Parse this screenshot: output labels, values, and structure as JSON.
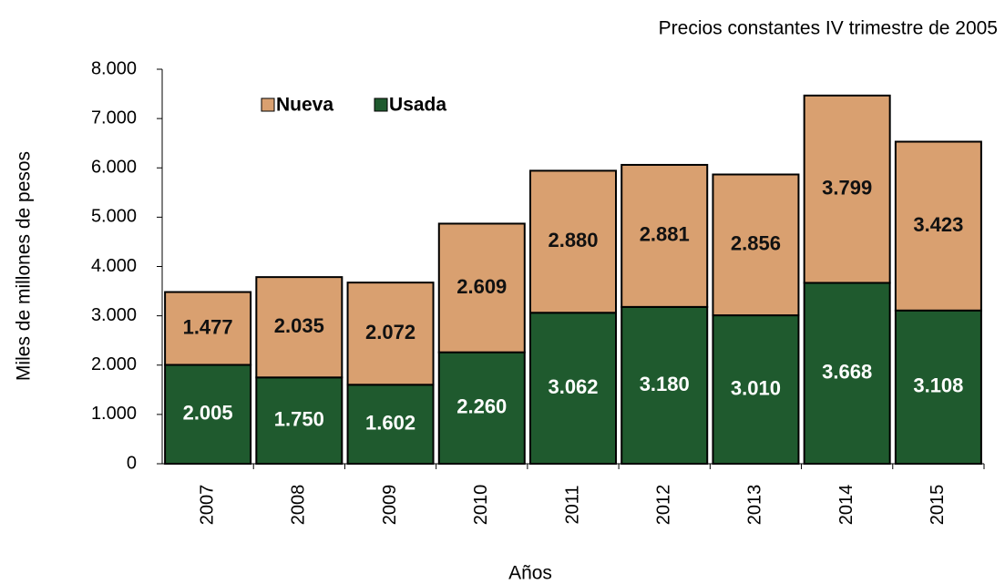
{
  "chart_data": {
    "type": "stacked_bar",
    "subtitle": "Precios constantes IV trimestre de 2005",
    "x_label": "Años",
    "y_label": "Miles de millones de pesos",
    "categories": [
      "2007",
      "2008",
      "2009",
      "2010",
      "2011",
      "2012",
      "2013",
      "2014",
      "2015"
    ],
    "series": [
      {
        "name": "Usada",
        "color": "#1f5a2e",
        "values": [
          2005,
          1750,
          1602,
          2260,
          3062,
          3180,
          3010,
          3668,
          3108
        ],
        "value_labels": [
          "2.005",
          "1.750",
          "1.602",
          "2.260",
          "3.062",
          "3.180",
          "3.010",
          "3.668",
          "3.108"
        ]
      },
      {
        "name": "Nueva",
        "color": "#d9a070",
        "values": [
          1477,
          2035,
          2072,
          2609,
          2880,
          2881,
          2856,
          3799,
          3423
        ],
        "value_labels": [
          "1.477",
          "2.035",
          "2.072",
          "2.609",
          "2.880",
          "2.881",
          "2.856",
          "3.799",
          "3.423"
        ]
      }
    ],
    "ylim": [
      0,
      8000
    ],
    "yticks": [
      {
        "value": 0,
        "label": "0"
      },
      {
        "value": 1000,
        "label": "1.000"
      },
      {
        "value": 2000,
        "label": "2.000"
      },
      {
        "value": 3000,
        "label": "3.000"
      },
      {
        "value": 4000,
        "label": "4.000"
      },
      {
        "value": 5000,
        "label": "5.000"
      },
      {
        "value": 6000,
        "label": "6.000"
      },
      {
        "value": 7000,
        "label": "7.000"
      },
      {
        "value": 8000,
        "label": "8.000"
      }
    ],
    "legend": "top-left",
    "grid": false
  }
}
